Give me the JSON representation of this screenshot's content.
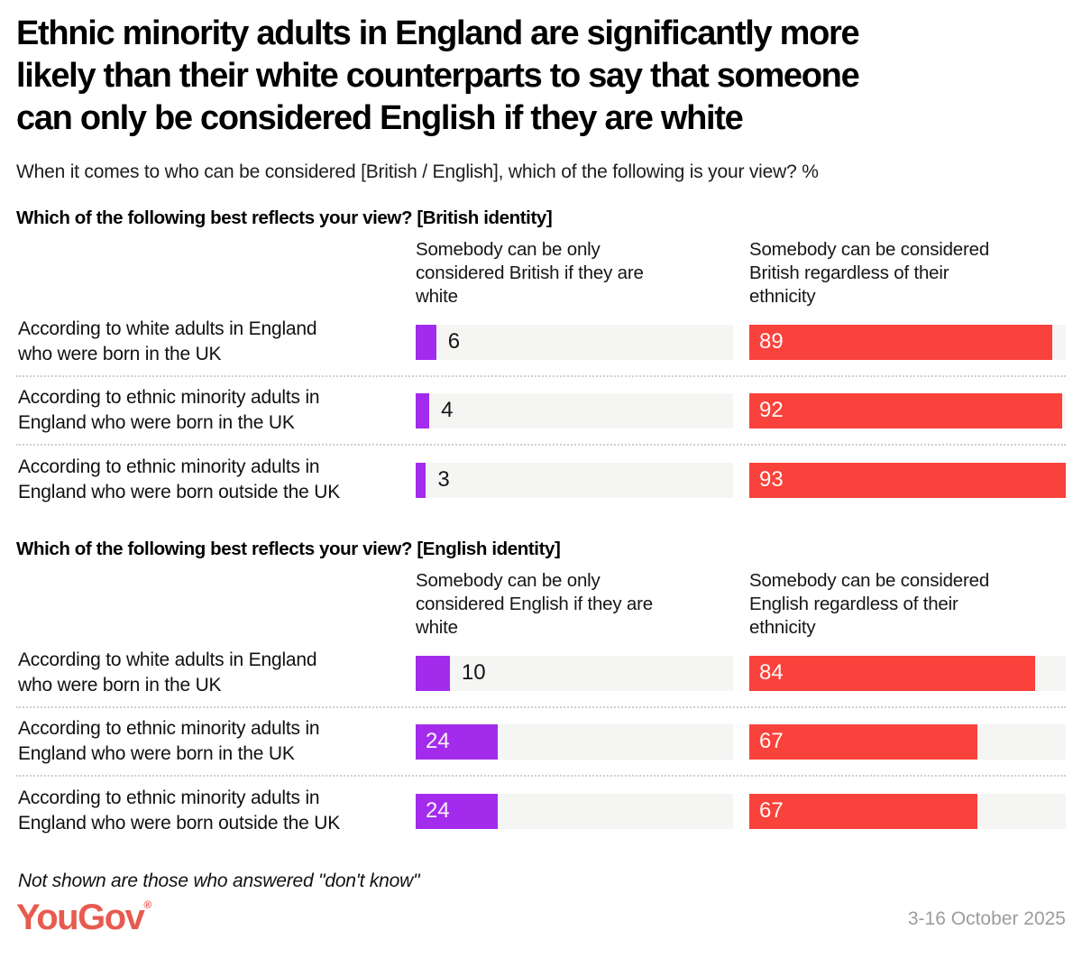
{
  "title": "Ethnic minority adults in England are significantly more\nlikely than their white counterparts to say that someone\ncan only be considered English if they are white",
  "subtitle": "When it comes to who can be considered [British / English], which of the following is your view? %",
  "scale_max": 93,
  "colors": {
    "purple_bar": "#a32cec",
    "red_bar": "#f9423b",
    "track_background": "#f5f5f4",
    "logo_coral": "#e85a4f",
    "date_gray": "#9c9c9c"
  },
  "sections": [
    {
      "heading": "Which of the following best reflects your view? [British identity]",
      "col1_header": "Somebody can be only\nconsidered British if they are\nwhite",
      "col2_header": "Somebody can be considered\nBritish regardless of their\nethnicity",
      "rows": [
        {
          "label": "According to white adults in England\nwho were born in the UK",
          "only_white": 6,
          "regardless": 89
        },
        {
          "label": "According to ethnic minority adults in\nEngland who were born in the UK",
          "only_white": 4,
          "regardless": 92
        },
        {
          "label": "According to ethnic minority adults in\nEngland who were born outside the UK",
          "only_white": 3,
          "regardless": 93
        }
      ]
    },
    {
      "heading": "Which of the following best reflects your view? [English identity]",
      "col1_header": "Somebody can be only\nconsidered English if they are\nwhite",
      "col2_header": "Somebody can be considered\nEnglish regardless of their\nethnicity",
      "rows": [
        {
          "label": "According to white adults in England\nwho were born in the UK",
          "only_white": 10,
          "regardless": 84
        },
        {
          "label": "According to ethnic minority adults in\nEngland who were born in the UK",
          "only_white": 24,
          "regardless": 67
        },
        {
          "label": "According to ethnic minority adults in\nEngland who were born outside the UK",
          "only_white": 24,
          "regardless": 67
        }
      ]
    }
  ],
  "footnote": "Not shown are those who answered \"don't know\"",
  "logo": {
    "text": "YouGov",
    "reg": "®"
  },
  "date": "3-16 October 2025",
  "chart_data": [
    {
      "type": "bar",
      "orientation": "horizontal",
      "title": "Which of the following best reflects your view? [British identity]",
      "units": "%",
      "categories": [
        "According to white adults in England who were born in the UK",
        "According to ethnic minority adults in England who were born in the UK",
        "According to ethnic minority adults in England who were born outside the UK"
      ],
      "series": [
        {
          "name": "Somebody can be only considered British if they are white",
          "values": [
            6,
            4,
            3
          ],
          "color": "#a32cec"
        },
        {
          "name": "Somebody can be considered British regardless of their ethnicity",
          "values": [
            89,
            92,
            93
          ],
          "color": "#f9423b"
        }
      ],
      "xlim": [
        0,
        93
      ],
      "grid": false,
      "legend_position": "column-headers"
    },
    {
      "type": "bar",
      "orientation": "horizontal",
      "title": "Which of the following best reflects your view? [English identity]",
      "units": "%",
      "categories": [
        "According to white adults in England who were born in the UK",
        "According to ethnic minority adults in England who were born in the UK",
        "According to ethnic minority adults in England who were born outside the UK"
      ],
      "series": [
        {
          "name": "Somebody can be only considered English if they are white",
          "values": [
            10,
            24,
            24
          ],
          "color": "#a32cec"
        },
        {
          "name": "Somebody can be considered English regardless of their ethnicity",
          "values": [
            84,
            67,
            67
          ],
          "color": "#f9423b"
        }
      ],
      "xlim": [
        0,
        93
      ],
      "grid": false,
      "legend_position": "column-headers"
    }
  ]
}
